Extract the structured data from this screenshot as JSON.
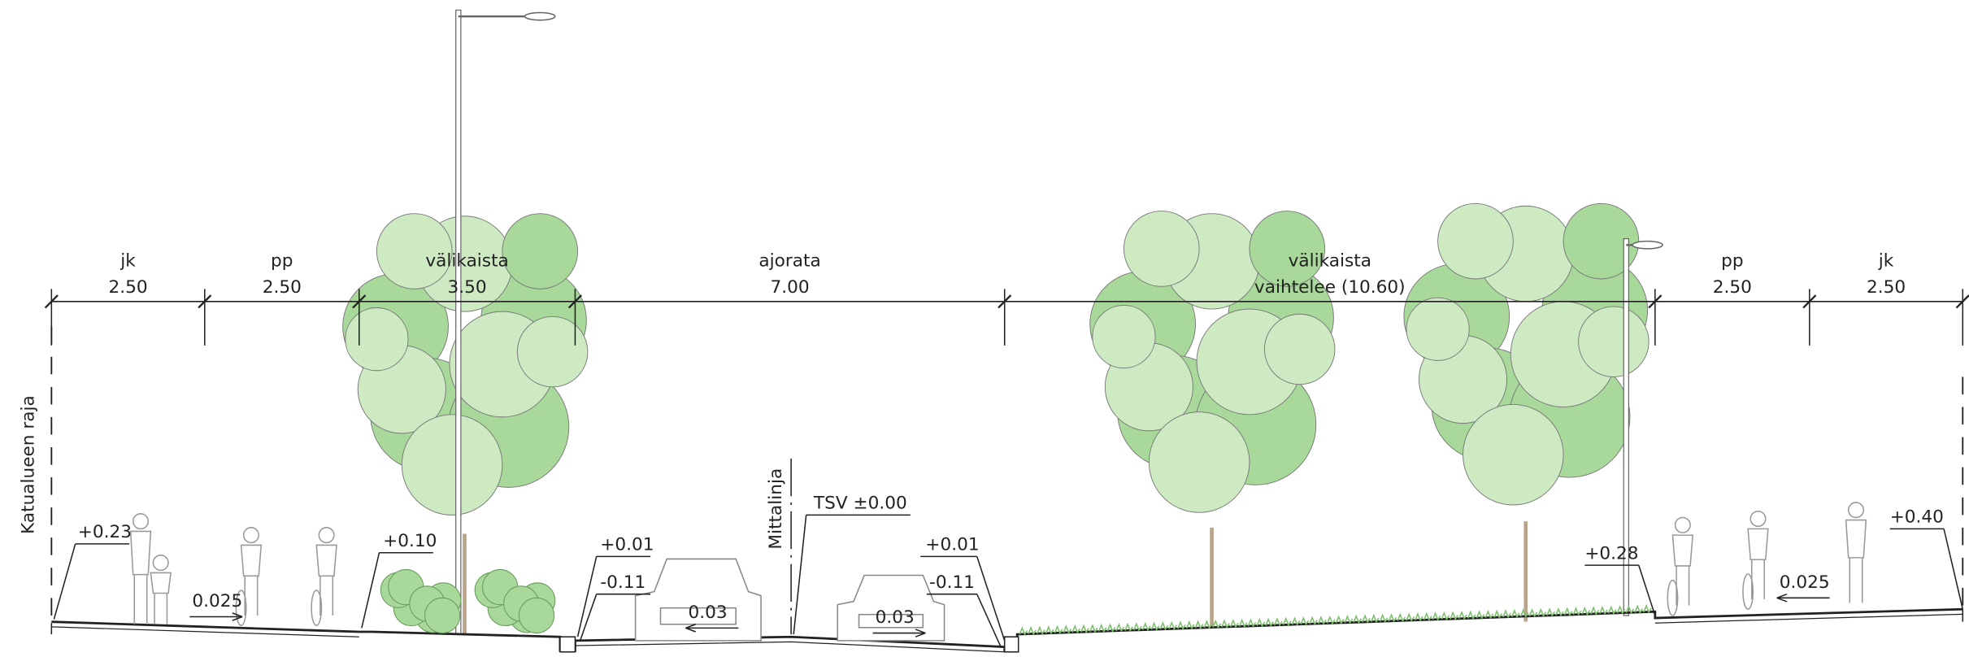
{
  "dimensions": [
    {
      "name": "jk",
      "width": "2.50"
    },
    {
      "name": "pp",
      "width": "2.50"
    },
    {
      "name": "välikaista",
      "width": "3.50"
    },
    {
      "name": "ajorata",
      "width": "7.00"
    },
    {
      "name": "välikaista",
      "width": "vaihtelee (10.60)"
    },
    {
      "name": "pp",
      "width": "2.50"
    },
    {
      "name": "jk",
      "width": "2.50"
    }
  ],
  "boundary_label": "Katualueen raja",
  "measure_line_label": "Mittalinja",
  "elevations": [
    "+0.23",
    "+0.10",
    "+0.01",
    "-0.11",
    "TSV ±0.00",
    "+0.01",
    "-0.11",
    "+0.28",
    "+0.40"
  ],
  "slopes": [
    "0.025",
    "0.03",
    "0.03",
    "0.025"
  ]
}
